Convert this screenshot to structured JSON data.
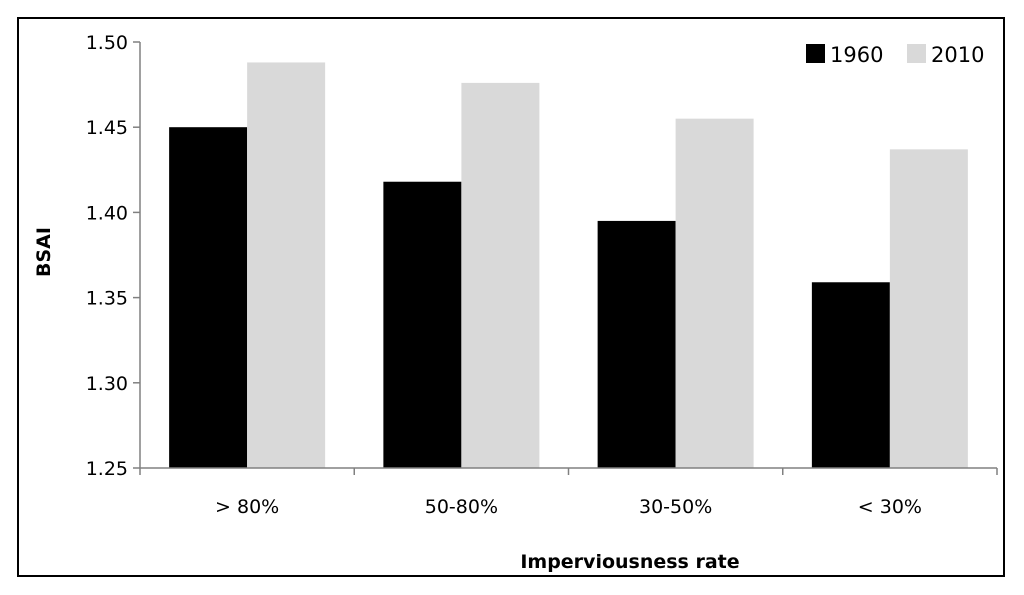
{
  "chart_data": {
    "type": "bar",
    "title": "",
    "xlabel": "Imperviousness rate",
    "ylabel": "BSAI",
    "categories": [
      "> 80%",
      "50-80%",
      "30-50%",
      "< 30%"
    ],
    "series": [
      {
        "name": "1960",
        "values": [
          1.45,
          1.418,
          1.395,
          1.359
        ],
        "color": "#000000"
      },
      {
        "name": "2010",
        "values": [
          1.488,
          1.476,
          1.455,
          1.437
        ],
        "color": "#d9d9d9"
      }
    ],
    "ylim": [
      1.25,
      1.5
    ],
    "yticks": [
      1.25,
      1.3,
      1.35,
      1.4,
      1.45,
      1.5
    ],
    "ytick_labels": [
      "1.25",
      "1.30",
      "1.35",
      "1.40",
      "1.45",
      "1.50"
    ],
    "grid": false,
    "legend_position": "top-right",
    "axis_color": "#808080"
  }
}
